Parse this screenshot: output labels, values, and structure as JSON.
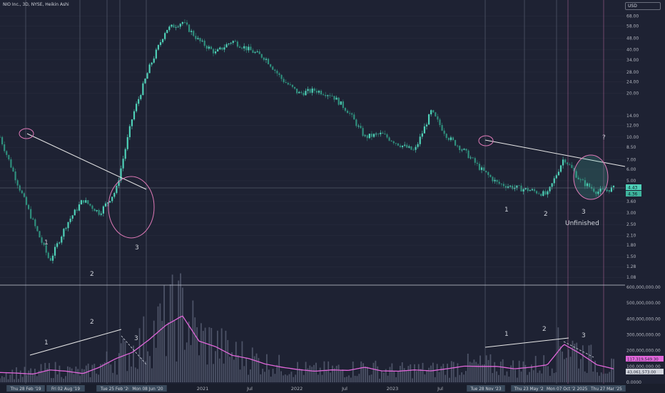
{
  "header": {
    "symbol": "NIO Inc., 3D, NYSE, Heikin Ashi"
  },
  "currency": "USD",
  "colors": {
    "bg": "#1e2233",
    "candle": "#4fd1b8",
    "volume_line": "#e066d9",
    "volume_bar": "#5c6378",
    "highlight": "#e07ab8",
    "trend": "#e8e8e8",
    "grid": "#2a2e3f"
  },
  "price_axis": {
    "scale": "log",
    "ticks": [
      "68.00",
      "58.00",
      "48.00",
      "40.00",
      "34.00",
      "28.00",
      "24.00",
      "20.00",
      "14.00",
      "12.00",
      "10.00",
      "8.50",
      "7.00",
      "6.00",
      "5.00",
      "4.00",
      "3.60",
      "3.00",
      "2.50",
      "2.10",
      "1.80",
      "1.50",
      "1.28",
      "1.08"
    ],
    "current_price": "4.43",
    "current_price_2": "4.36"
  },
  "volume_axis": {
    "ticks": [
      "600,000,000.00",
      "500,000,000.00",
      "400,000,000.00",
      "300,000,000.00",
      "200,000,000.00",
      "100,000,000.00",
      "0.0000"
    ],
    "badge_1": "117,319,549.30",
    "badge_2": "43,061,573.00"
  },
  "time_axis": {
    "ticks": [
      "2021",
      "Jul",
      "2022",
      "Jul",
      "2023",
      "Jul"
    ],
    "dates": [
      "Thu 28 Feb '19",
      "Fri 02 Aug '19",
      "Tue 25 Feb '20",
      "Mon 08 Jun '20",
      "Tue 28 Nov '23",
      "Thu 23 May '24",
      "Mon 07 Oct '24",
      "2025",
      "Thu 27 Mar '25"
    ]
  },
  "annotations": {
    "w1_1": "1",
    "w1_2": "2",
    "w1_3": "3",
    "w2_1": "1",
    "w2_2": "2",
    "w2_3": "3",
    "v1_1": "1",
    "v1_2": "2",
    "v1_3": "3",
    "v2_1": "1",
    "v2_2": "2",
    "v2_3": "3",
    "unfinished": "Unfinished",
    "question": "?"
  },
  "chart_data": {
    "type": "candlestick",
    "x": [
      "2019-02",
      "2019-05",
      "2019-08",
      "2019-10",
      "2020-01",
      "2020-03",
      "2020-05",
      "2020-06",
      "2020-08",
      "2020-10",
      "2020-12",
      "2021-01",
      "2021-03",
      "2021-05",
      "2021-07",
      "2021-09",
      "2021-11",
      "2022-01",
      "2022-03",
      "2022-05",
      "2022-07",
      "2022-09",
      "2022-11",
      "2023-01",
      "2023-03",
      "2023-05",
      "2023-07",
      "2023-09",
      "2023-11",
      "2024-01",
      "2024-03",
      "2024-05",
      "2024-07",
      "2024-09",
      "2024-10",
      "2024-12",
      "2025-02",
      "2025-03"
    ],
    "price": [
      10.0,
      5.0,
      2.6,
      1.4,
      2.5,
      3.7,
      3.0,
      4.3,
      14.0,
      30.0,
      55.0,
      62.0,
      46.0,
      38.0,
      46.0,
      40.0,
      35.0,
      25.0,
      20.0,
      21.0,
      19.5,
      15.0,
      10.0,
      10.5,
      9.0,
      8.0,
      15.0,
      10.0,
      8.0,
      6.0,
      4.8,
      4.5,
      4.3,
      4.0,
      7.2,
      5.0,
      4.2,
      4.43
    ],
    "volume_ma": [
      62,
      58,
      52,
      78,
      70,
      55,
      95,
      150,
      190,
      270,
      360,
      420,
      260,
      225,
      170,
      150,
      115,
      95,
      80,
      70,
      78,
      75,
      95,
      72,
      70,
      78,
      72,
      86,
      102,
      100,
      100,
      85,
      95,
      110,
      240,
      180,
      110,
      85
    ],
    "price_ylim": [
      1.0,
      75.0
    ],
    "volume_ylim": [
      0,
      600000000
    ],
    "grid": true
  }
}
